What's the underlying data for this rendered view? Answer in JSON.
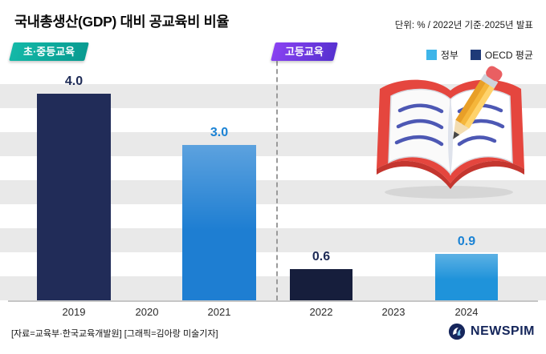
{
  "header": {
    "title": "국내총생산(GDP) 대비 공교육비 비율",
    "unit_note": "단위: % / 2022년 기준·2025년 발표"
  },
  "section_badges": [
    {
      "label": "초·중등교육",
      "color": "#0fae9f"
    },
    {
      "label": "고등교육",
      "color": "#7b3bf2"
    }
  ],
  "legend": [
    {
      "label": "정부",
      "color": "#3eb5e9"
    },
    {
      "label": "OECD 평균",
      "color": "#1e3a78"
    }
  ],
  "chart_data": {
    "type": "bar",
    "title": "국내총생산(GDP) 대비 공교육비 비율",
    "unit": "%",
    "categories": [
      "2019",
      "2020",
      "2021",
      "2022",
      "2023",
      "2024"
    ],
    "ylim": [
      0,
      4.65
    ],
    "grid": "horizontal-stripes",
    "stripe_color": "#e9e9e9",
    "legend_position": "top-right",
    "sections": [
      {
        "name": "초·중등교육",
        "years": [
          "2019",
          "2020",
          "2021"
        ]
      },
      {
        "name": "고등교육",
        "years": [
          "2022",
          "2023",
          "2024"
        ]
      }
    ],
    "bars": [
      {
        "year": "2019",
        "section": "초·중등교육",
        "series": "OECD 평균",
        "value": 4.0,
        "label": "4.0",
        "color": "#212c58"
      },
      {
        "year": "2021",
        "section": "초·중등교육",
        "series": "정부",
        "value": 3.0,
        "label": "3.0",
        "color": "#1e7ed2"
      },
      {
        "year": "2022",
        "section": "고등교육",
        "series": "OECD 평균",
        "value": 0.6,
        "label": "0.6",
        "color": "#161e3c"
      },
      {
        "year": "2024",
        "section": "고등교육",
        "series": "정부",
        "value": 0.9,
        "label": "0.9",
        "color": "#1f93da"
      }
    ]
  },
  "footer": {
    "source": "[자료=교육부·한국교육개발원]",
    "credit": "[그래픽=김아랑 미술기자]",
    "brand": "NEWSPIM"
  },
  "illustration": "open-book-with-pencil"
}
